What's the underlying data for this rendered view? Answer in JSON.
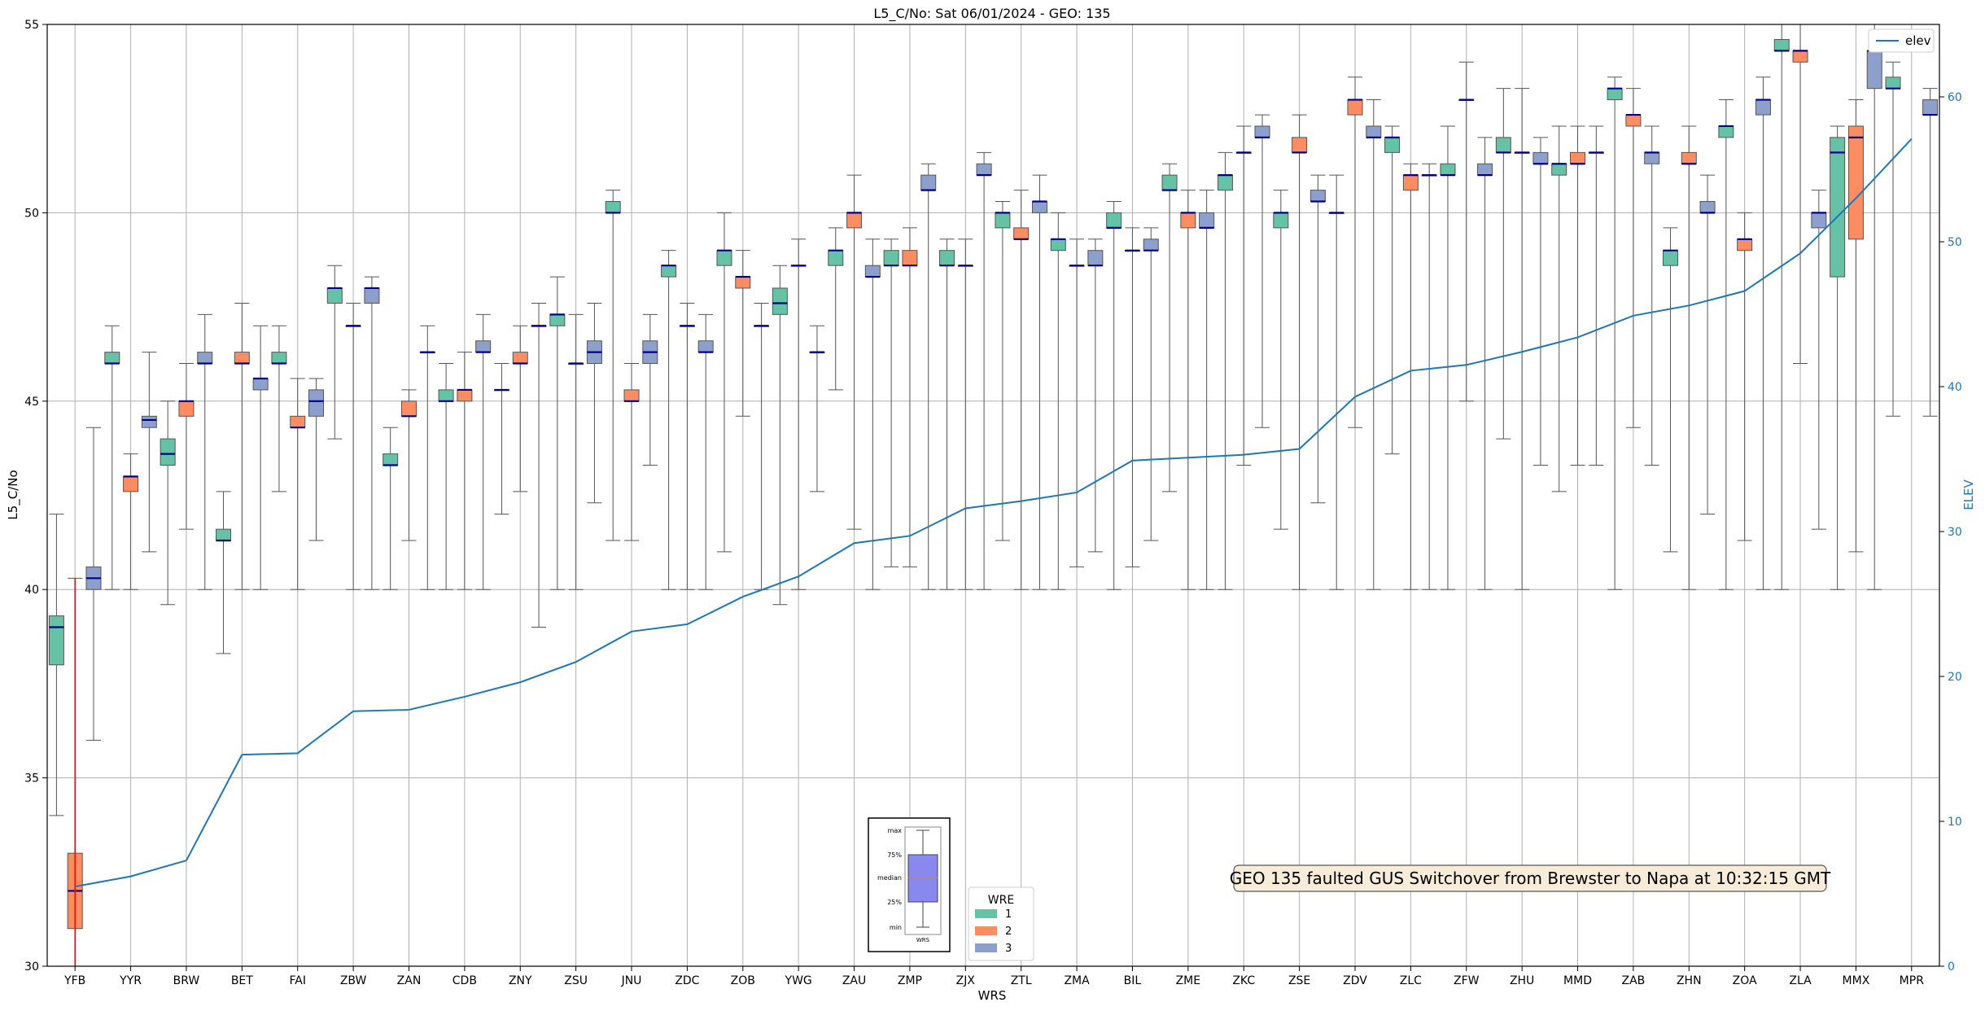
{
  "chart_data": {
    "type": "box",
    "title": "L5_C/No: Sat 06/01/2024 - GEO: 135",
    "xlabel": "WRS",
    "ylabel": "L5_C/No",
    "y2label": "ELEV",
    "ylim": [
      30,
      55
    ],
    "yticks": [
      30,
      35,
      40,
      45,
      50,
      55
    ],
    "y2lim": [
      0,
      65
    ],
    "y2ticks": [
      0,
      10,
      20,
      30,
      40,
      50,
      60
    ],
    "grid": true,
    "categories": [
      "YFB",
      "YYR",
      "BRW",
      "BET",
      "FAI",
      "ZBW",
      "ZAN",
      "CDB",
      "ZNY",
      "ZSU",
      "JNU",
      "ZDC",
      "ZOB",
      "YWG",
      "ZAU",
      "ZMP",
      "ZJX",
      "ZTL",
      "ZMA",
      "BIL",
      "ZME",
      "ZKC",
      "ZSE",
      "ZDV",
      "ZLC",
      "ZFW",
      "ZHU",
      "MMD",
      "ZAB",
      "ZHN",
      "ZOA",
      "ZLA",
      "MMX",
      "MPR"
    ],
    "wre_legend": {
      "title": "WRE",
      "entries": [
        "1",
        "2",
        "3"
      ],
      "colors": [
        "#66c2a5",
        "#fc8d62",
        "#8da0cb"
      ],
      "placement": "bottom-center"
    },
    "boxes": [
      {
        "station": "YFB",
        "wre": 1,
        "min": 34.0,
        "q1": 38.0,
        "median": 39.0,
        "q3": 39.3,
        "max": 42.0
      },
      {
        "station": "YFB",
        "wre": 2,
        "min": 30.0,
        "q1": 31.0,
        "median": 32.0,
        "q3": 33.0,
        "max": 40.3
      },
      {
        "station": "YFB",
        "wre": 3,
        "min": 36.0,
        "q1": 40.0,
        "median": 40.3,
        "q3": 40.6,
        "max": 44.3
      },
      {
        "station": "YYR",
        "wre": 1,
        "min": 40.0,
        "q1": 46.0,
        "median": 46.0,
        "q3": 46.3,
        "max": 47.0
      },
      {
        "station": "YYR",
        "wre": 2,
        "min": 40.0,
        "q1": 42.6,
        "median": 43.0,
        "q3": 43.0,
        "max": 43.6
      },
      {
        "station": "YYR",
        "wre": 3,
        "min": 41.0,
        "q1": 44.3,
        "median": 44.5,
        "q3": 44.6,
        "max": 46.3
      },
      {
        "station": "BRW",
        "wre": 1,
        "min": 39.6,
        "q1": 43.3,
        "median": 43.6,
        "q3": 44.0,
        "max": 45.0
      },
      {
        "station": "BRW",
        "wre": 2,
        "min": 41.6,
        "q1": 44.6,
        "median": 45.0,
        "q3": 45.0,
        "max": 46.0
      },
      {
        "station": "BRW",
        "wre": 3,
        "min": 40.0,
        "q1": 46.0,
        "median": 46.0,
        "q3": 46.3,
        "max": 47.3
      },
      {
        "station": "BET",
        "wre": 1,
        "min": 38.3,
        "q1": 41.3,
        "median": 41.3,
        "q3": 41.6,
        "max": 42.6
      },
      {
        "station": "BET",
        "wre": 2,
        "min": 40.0,
        "q1": 46.0,
        "median": 46.0,
        "q3": 46.3,
        "max": 47.6
      },
      {
        "station": "BET",
        "wre": 3,
        "min": 40.0,
        "q1": 45.3,
        "median": 45.6,
        "q3": 45.6,
        "max": 47.0
      },
      {
        "station": "FAI",
        "wre": 1,
        "min": 42.6,
        "q1": 46.0,
        "median": 46.0,
        "q3": 46.3,
        "max": 47.0
      },
      {
        "station": "FAI",
        "wre": 2,
        "min": 40.0,
        "q1": 44.3,
        "median": 44.3,
        "q3": 44.6,
        "max": 45.6
      },
      {
        "station": "FAI",
        "wre": 3,
        "min": 41.3,
        "q1": 44.6,
        "median": 45.0,
        "q3": 45.3,
        "max": 45.6
      },
      {
        "station": "ZBW",
        "wre": 1,
        "min": 44.0,
        "q1": 47.6,
        "median": 48.0,
        "q3": 48.0,
        "max": 48.6
      },
      {
        "station": "ZBW",
        "wre": 2,
        "min": 40.0,
        "q1": 47.0,
        "median": 47.0,
        "q3": 47.0,
        "max": 47.6
      },
      {
        "station": "ZBW",
        "wre": 3,
        "min": 40.0,
        "q1": 47.6,
        "median": 48.0,
        "q3": 48.0,
        "max": 48.3
      },
      {
        "station": "ZAN",
        "wre": 1,
        "min": 40.0,
        "q1": 43.3,
        "median": 43.3,
        "q3": 43.6,
        "max": 44.3
      },
      {
        "station": "ZAN",
        "wre": 2,
        "min": 41.3,
        "q1": 44.6,
        "median": 44.6,
        "q3": 45.0,
        "max": 45.3
      },
      {
        "station": "ZAN",
        "wre": 3,
        "min": 40.0,
        "q1": 46.3,
        "median": 46.3,
        "q3": 46.3,
        "max": 47.0
      },
      {
        "station": "CDB",
        "wre": 1,
        "min": 40.0,
        "q1": 45.0,
        "median": 45.0,
        "q3": 45.3,
        "max": 46.0
      },
      {
        "station": "CDB",
        "wre": 2,
        "min": 40.0,
        "q1": 45.0,
        "median": 45.3,
        "q3": 45.3,
        "max": 46.3
      },
      {
        "station": "CDB",
        "wre": 3,
        "min": 40.0,
        "q1": 46.3,
        "median": 46.3,
        "q3": 46.6,
        "max": 47.3
      },
      {
        "station": "ZNY",
        "wre": 1,
        "min": 42.0,
        "q1": 45.3,
        "median": 45.3,
        "q3": 45.3,
        "max": 46.0
      },
      {
        "station": "ZNY",
        "wre": 2,
        "min": 42.6,
        "q1": 46.0,
        "median": 46.0,
        "q3": 46.3,
        "max": 47.0
      },
      {
        "station": "ZNY",
        "wre": 3,
        "min": 39.0,
        "q1": 47.0,
        "median": 47.0,
        "q3": 47.0,
        "max": 47.6
      },
      {
        "station": "ZSU",
        "wre": 1,
        "min": 40.0,
        "q1": 47.0,
        "median": 47.3,
        "q3": 47.3,
        "max": 48.3
      },
      {
        "station": "ZSU",
        "wre": 2,
        "min": 40.0,
        "q1": 46.0,
        "median": 46.0,
        "q3": 46.0,
        "max": 47.3
      },
      {
        "station": "ZSU",
        "wre": 3,
        "min": 42.3,
        "q1": 46.0,
        "median": 46.3,
        "q3": 46.6,
        "max": 47.6
      },
      {
        "station": "JNU",
        "wre": 1,
        "min": 41.3,
        "q1": 50.0,
        "median": 50.0,
        "q3": 50.3,
        "max": 50.6
      },
      {
        "station": "JNU",
        "wre": 2,
        "min": 41.3,
        "q1": 45.0,
        "median": 45.0,
        "q3": 45.3,
        "max": 46.0
      },
      {
        "station": "JNU",
        "wre": 3,
        "min": 43.3,
        "q1": 46.0,
        "median": 46.3,
        "q3": 46.6,
        "max": 47.3
      },
      {
        "station": "ZDC",
        "wre": 1,
        "min": 40.0,
        "q1": 48.3,
        "median": 48.6,
        "q3": 48.6,
        "max": 49.0
      },
      {
        "station": "ZDC",
        "wre": 2,
        "min": 40.0,
        "q1": 47.0,
        "median": 47.0,
        "q3": 47.0,
        "max": 47.6
      },
      {
        "station": "ZDC",
        "wre": 3,
        "min": 40.0,
        "q1": 46.3,
        "median": 46.3,
        "q3": 46.6,
        "max": 47.3
      },
      {
        "station": "ZOB",
        "wre": 1,
        "min": 41.0,
        "q1": 48.6,
        "median": 49.0,
        "q3": 49.0,
        "max": 50.0
      },
      {
        "station": "ZOB",
        "wre": 2,
        "min": 44.6,
        "q1": 48.0,
        "median": 48.3,
        "q3": 48.3,
        "max": 49.0
      },
      {
        "station": "ZOB",
        "wre": 3,
        "min": 40.0,
        "q1": 47.0,
        "median": 47.0,
        "q3": 47.0,
        "max": 47.6
      },
      {
        "station": "YWG",
        "wre": 1,
        "min": 39.6,
        "q1": 47.3,
        "median": 47.6,
        "q3": 48.0,
        "max": 48.6
      },
      {
        "station": "YWG",
        "wre": 2,
        "min": 40.0,
        "q1": 48.6,
        "median": 48.6,
        "q3": 48.6,
        "max": 49.3
      },
      {
        "station": "YWG",
        "wre": 3,
        "min": 42.6,
        "q1": 46.3,
        "median": 46.3,
        "q3": 46.3,
        "max": 47.0
      },
      {
        "station": "ZAU",
        "wre": 1,
        "min": 45.3,
        "q1": 48.6,
        "median": 49.0,
        "q3": 49.0,
        "max": 49.6
      },
      {
        "station": "ZAU",
        "wre": 2,
        "min": 41.6,
        "q1": 49.6,
        "median": 50.0,
        "q3": 50.0,
        "max": 51.0
      },
      {
        "station": "ZAU",
        "wre": 3,
        "min": 40.0,
        "q1": 48.3,
        "median": 48.3,
        "q3": 48.6,
        "max": 49.3
      },
      {
        "station": "ZMP",
        "wre": 1,
        "min": 40.6,
        "q1": 48.6,
        "median": 48.6,
        "q3": 49.0,
        "max": 49.3
      },
      {
        "station": "ZMP",
        "wre": 2,
        "min": 40.6,
        "q1": 48.6,
        "median": 48.6,
        "q3": 49.0,
        "max": 49.6
      },
      {
        "station": "ZMP",
        "wre": 3,
        "min": 40.0,
        "q1": 50.6,
        "median": 50.6,
        "q3": 51.0,
        "max": 51.3
      },
      {
        "station": "ZJX",
        "wre": 1,
        "min": 40.0,
        "q1": 48.6,
        "median": 48.6,
        "q3": 49.0,
        "max": 49.3
      },
      {
        "station": "ZJX",
        "wre": 2,
        "min": 40.0,
        "q1": 48.6,
        "median": 48.6,
        "q3": 48.6,
        "max": 49.3
      },
      {
        "station": "ZJX",
        "wre": 3,
        "min": 40.0,
        "q1": 51.0,
        "median": 51.0,
        "q3": 51.3,
        "max": 51.6
      },
      {
        "station": "ZTL",
        "wre": 1,
        "min": 41.3,
        "q1": 49.6,
        "median": 50.0,
        "q3": 50.0,
        "max": 50.3
      },
      {
        "station": "ZTL",
        "wre": 2,
        "min": 40.0,
        "q1": 49.3,
        "median": 49.3,
        "q3": 49.6,
        "max": 50.6
      },
      {
        "station": "ZTL",
        "wre": 3,
        "min": 40.0,
        "q1": 50.0,
        "median": 50.3,
        "q3": 50.3,
        "max": 51.0
      },
      {
        "station": "ZMA",
        "wre": 1,
        "min": 40.0,
        "q1": 49.0,
        "median": 49.3,
        "q3": 49.3,
        "max": 50.0
      },
      {
        "station": "ZMA",
        "wre": 2,
        "min": 40.6,
        "q1": 48.6,
        "median": 48.6,
        "q3": 48.6,
        "max": 49.3
      },
      {
        "station": "ZMA",
        "wre": 3,
        "min": 41.0,
        "q1": 48.6,
        "median": 48.6,
        "q3": 49.0,
        "max": 49.3
      },
      {
        "station": "BIL",
        "wre": 1,
        "min": 40.0,
        "q1": 49.6,
        "median": 49.6,
        "q3": 50.0,
        "max": 50.3
      },
      {
        "station": "BIL",
        "wre": 2,
        "min": 40.6,
        "q1": 49.0,
        "median": 49.0,
        "q3": 49.0,
        "max": 49.6
      },
      {
        "station": "BIL",
        "wre": 3,
        "min": 41.3,
        "q1": 49.0,
        "median": 49.0,
        "q3": 49.3,
        "max": 49.6
      },
      {
        "station": "ZME",
        "wre": 1,
        "min": 42.6,
        "q1": 50.6,
        "median": 50.6,
        "q3": 51.0,
        "max": 51.3
      },
      {
        "station": "ZME",
        "wre": 2,
        "min": 40.0,
        "q1": 49.6,
        "median": 50.0,
        "q3": 50.0,
        "max": 50.6
      },
      {
        "station": "ZME",
        "wre": 3,
        "min": 40.0,
        "q1": 49.6,
        "median": 49.6,
        "q3": 50.0,
        "max": 50.6
      },
      {
        "station": "ZKC",
        "wre": 1,
        "min": 40.0,
        "q1": 50.6,
        "median": 51.0,
        "q3": 51.0,
        "max": 51.6
      },
      {
        "station": "ZKC",
        "wre": 2,
        "min": 43.3,
        "q1": 51.6,
        "median": 51.6,
        "q3": 51.6,
        "max": 52.3
      },
      {
        "station": "ZKC",
        "wre": 3,
        "min": 44.3,
        "q1": 52.0,
        "median": 52.0,
        "q3": 52.3,
        "max": 52.6
      },
      {
        "station": "ZSE",
        "wre": 1,
        "min": 41.6,
        "q1": 49.6,
        "median": 50.0,
        "q3": 50.0,
        "max": 50.6
      },
      {
        "station": "ZSE",
        "wre": 2,
        "min": 40.0,
        "q1": 51.6,
        "median": 51.6,
        "q3": 52.0,
        "max": 52.6
      },
      {
        "station": "ZSE",
        "wre": 3,
        "min": 42.3,
        "q1": 50.3,
        "median": 50.3,
        "q3": 50.6,
        "max": 51.0
      },
      {
        "station": "ZDV",
        "wre": 1,
        "min": 40.0,
        "q1": 50.0,
        "median": 50.0,
        "q3": 50.0,
        "max": 51.0
      },
      {
        "station": "ZDV",
        "wre": 2,
        "min": 44.3,
        "q1": 52.6,
        "median": 53.0,
        "q3": 53.0,
        "max": 53.6
      },
      {
        "station": "ZDV",
        "wre": 3,
        "min": 40.0,
        "q1": 52.0,
        "median": 52.0,
        "q3": 52.3,
        "max": 53.0
      },
      {
        "station": "ZLC",
        "wre": 1,
        "min": 43.6,
        "q1": 51.6,
        "median": 52.0,
        "q3": 52.0,
        "max": 52.3
      },
      {
        "station": "ZLC",
        "wre": 2,
        "min": 40.0,
        "q1": 50.6,
        "median": 51.0,
        "q3": 51.0,
        "max": 51.3
      },
      {
        "station": "ZLC",
        "wre": 3,
        "min": 40.0,
        "q1": 51.0,
        "median": 51.0,
        "q3": 51.0,
        "max": 51.3
      },
      {
        "station": "ZFW",
        "wre": 1,
        "min": 40.0,
        "q1": 51.0,
        "median": 51.0,
        "q3": 51.3,
        "max": 52.3
      },
      {
        "station": "ZFW",
        "wre": 2,
        "min": 45.0,
        "q1": 53.0,
        "median": 53.0,
        "q3": 53.0,
        "max": 54.0
      },
      {
        "station": "ZFW",
        "wre": 3,
        "min": 40.0,
        "q1": 51.0,
        "median": 51.0,
        "q3": 51.3,
        "max": 52.0
      },
      {
        "station": "ZHU",
        "wre": 1,
        "min": 44.0,
        "q1": 51.6,
        "median": 51.6,
        "q3": 52.0,
        "max": 53.3
      },
      {
        "station": "ZHU",
        "wre": 2,
        "min": 40.0,
        "q1": 51.6,
        "median": 51.6,
        "q3": 51.6,
        "max": 53.3
      },
      {
        "station": "ZHU",
        "wre": 3,
        "min": 43.3,
        "q1": 51.3,
        "median": 51.3,
        "q3": 51.6,
        "max": 52.0
      },
      {
        "station": "MMD",
        "wre": 1,
        "min": 42.6,
        "q1": 51.0,
        "median": 51.3,
        "q3": 51.3,
        "max": 52.3
      },
      {
        "station": "MMD",
        "wre": 2,
        "min": 43.3,
        "q1": 51.3,
        "median": 51.3,
        "q3": 51.6,
        "max": 52.3
      },
      {
        "station": "MMD",
        "wre": 3,
        "min": 43.3,
        "q1": 51.6,
        "median": 51.6,
        "q3": 51.6,
        "max": 52.3
      },
      {
        "station": "ZAB",
        "wre": 1,
        "min": 40.0,
        "q1": 53.0,
        "median": 53.3,
        "q3": 53.3,
        "max": 53.6
      },
      {
        "station": "ZAB",
        "wre": 2,
        "min": 44.3,
        "q1": 52.3,
        "median": 52.6,
        "q3": 52.6,
        "max": 53.3
      },
      {
        "station": "ZAB",
        "wre": 3,
        "min": 43.3,
        "q1": 51.3,
        "median": 51.6,
        "q3": 51.6,
        "max": 52.3
      },
      {
        "station": "ZHN",
        "wre": 1,
        "min": 41.0,
        "q1": 48.6,
        "median": 49.0,
        "q3": 49.0,
        "max": 49.6
      },
      {
        "station": "ZHN",
        "wre": 2,
        "min": 40.0,
        "q1": 51.3,
        "median": 51.3,
        "q3": 51.6,
        "max": 52.3
      },
      {
        "station": "ZHN",
        "wre": 3,
        "min": 42.0,
        "q1": 50.0,
        "median": 50.0,
        "q3": 50.3,
        "max": 51.0
      },
      {
        "station": "ZOA",
        "wre": 1,
        "min": 40.0,
        "q1": 52.0,
        "median": 52.3,
        "q3": 52.3,
        "max": 53.0
      },
      {
        "station": "ZOA",
        "wre": 2,
        "min": 41.3,
        "q1": 49.0,
        "median": 49.3,
        "q3": 49.3,
        "max": 50.0
      },
      {
        "station": "ZOA",
        "wre": 3,
        "min": 40.0,
        "q1": 52.6,
        "median": 53.0,
        "q3": 53.0,
        "max": 53.6
      },
      {
        "station": "ZLA",
        "wre": 1,
        "min": 40.0,
        "q1": 54.3,
        "median": 54.3,
        "q3": 54.6,
        "max": 55.0
      },
      {
        "station": "ZLA",
        "wre": 2,
        "min": 46.0,
        "q1": 54.0,
        "median": 54.3,
        "q3": 54.3,
        "max": 55.0
      },
      {
        "station": "ZLA",
        "wre": 3,
        "min": 41.6,
        "q1": 49.6,
        "median": 50.0,
        "q3": 50.0,
        "max": 50.6
      },
      {
        "station": "MMX",
        "wre": 1,
        "min": 40.0,
        "q1": 48.3,
        "median": 51.6,
        "q3": 52.0,
        "max": 52.3
      },
      {
        "station": "MMX",
        "wre": 2,
        "min": 41.0,
        "q1": 49.3,
        "median": 52.0,
        "q3": 52.3,
        "max": 53.0
      },
      {
        "station": "MMX",
        "wre": 3,
        "min": 40.0,
        "q1": 53.3,
        "median": 54.3,
        "q3": 54.3,
        "max": 55.0
      },
      {
        "station": "MPR",
        "wre": 1,
        "min": 44.6,
        "q1": 53.3,
        "median": 53.3,
        "q3": 53.6,
        "max": 54.0
      },
      {
        "station": "MPR",
        "wre": 3,
        "min": 44.6,
        "q1": 52.6,
        "median": 52.6,
        "q3": 53.0,
        "max": 53.3
      }
    ],
    "elev_series": {
      "name": "elev",
      "color": "#1f77b4",
      "values": [
        5.5,
        6.2,
        7.3,
        14.6,
        14.7,
        17.6,
        17.7,
        18.6,
        19.6,
        21.0,
        23.1,
        23.6,
        25.5,
        26.9,
        29.2,
        29.7,
        31.6,
        32.1,
        32.7,
        34.9,
        35.1,
        35.3,
        35.7,
        39.3,
        41.1,
        41.5,
        42.4,
        43.4,
        44.9,
        45.6,
        46.6,
        49.2,
        53.0,
        57.1
      ]
    },
    "fault_marker": {
      "station": "YFB",
      "color": "#ff0000"
    },
    "annotation": "GEO 135 faulted GUS Switchover from Brewster to Napa at 10:32:15 GMT",
    "boxplot_key": {
      "labels": [
        "max",
        "75%",
        "median",
        "25%",
        "min"
      ],
      "xlabel": "WRS",
      "fill": "#8888ee"
    }
  }
}
